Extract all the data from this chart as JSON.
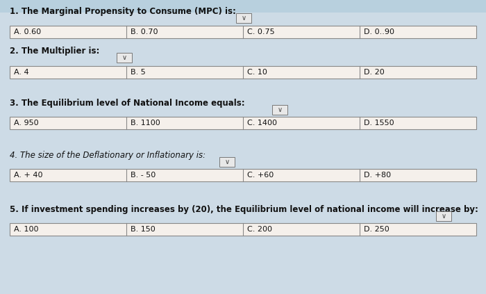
{
  "background_color": "#cddbe6",
  "questions": [
    {
      "number": "1.",
      "text": "The Marginal Propensity to Consume (MPC) is:",
      "options": [
        "A. 0.60",
        "B. 0.70",
        "C. 0.75",
        "D. 0..90"
      ],
      "dd_after": true
    },
    {
      "number": "2.",
      "text": "The Multiplier is:",
      "options": [
        "A. 4",
        "B. 5",
        "C. 10",
        "D. 20"
      ],
      "dd_after": true
    },
    {
      "number": "3.",
      "text": "The Equilibrium level of National Income equals:",
      "options": [
        "A. 950",
        "B. 1100",
        "C. 1400",
        "D. 1550"
      ],
      "dd_after": true
    },
    {
      "number": "4.",
      "text": "The size of the Deflationary or Inflationary is:",
      "options": [
        "A. + 40",
        "B. - 50",
        "C. +60",
        "D. +80"
      ],
      "dd_after": true
    },
    {
      "number": "5.",
      "text": "If investment spending increases by (20), the Equilibrium level of national income will increase by:",
      "options": [
        "A. 100",
        "B. 150",
        "C. 200",
        "D. 250"
      ],
      "dd_after": true
    }
  ],
  "box_bg": "#f5f0eb",
  "box_edge": "#888888",
  "text_color": "#111111",
  "q_fontsize": 8.5,
  "opt_fontsize": 8.0,
  "dd_color": "#e8e8e8",
  "dd_edge": "#777777",
  "top_bar_color": "#b8d0de"
}
